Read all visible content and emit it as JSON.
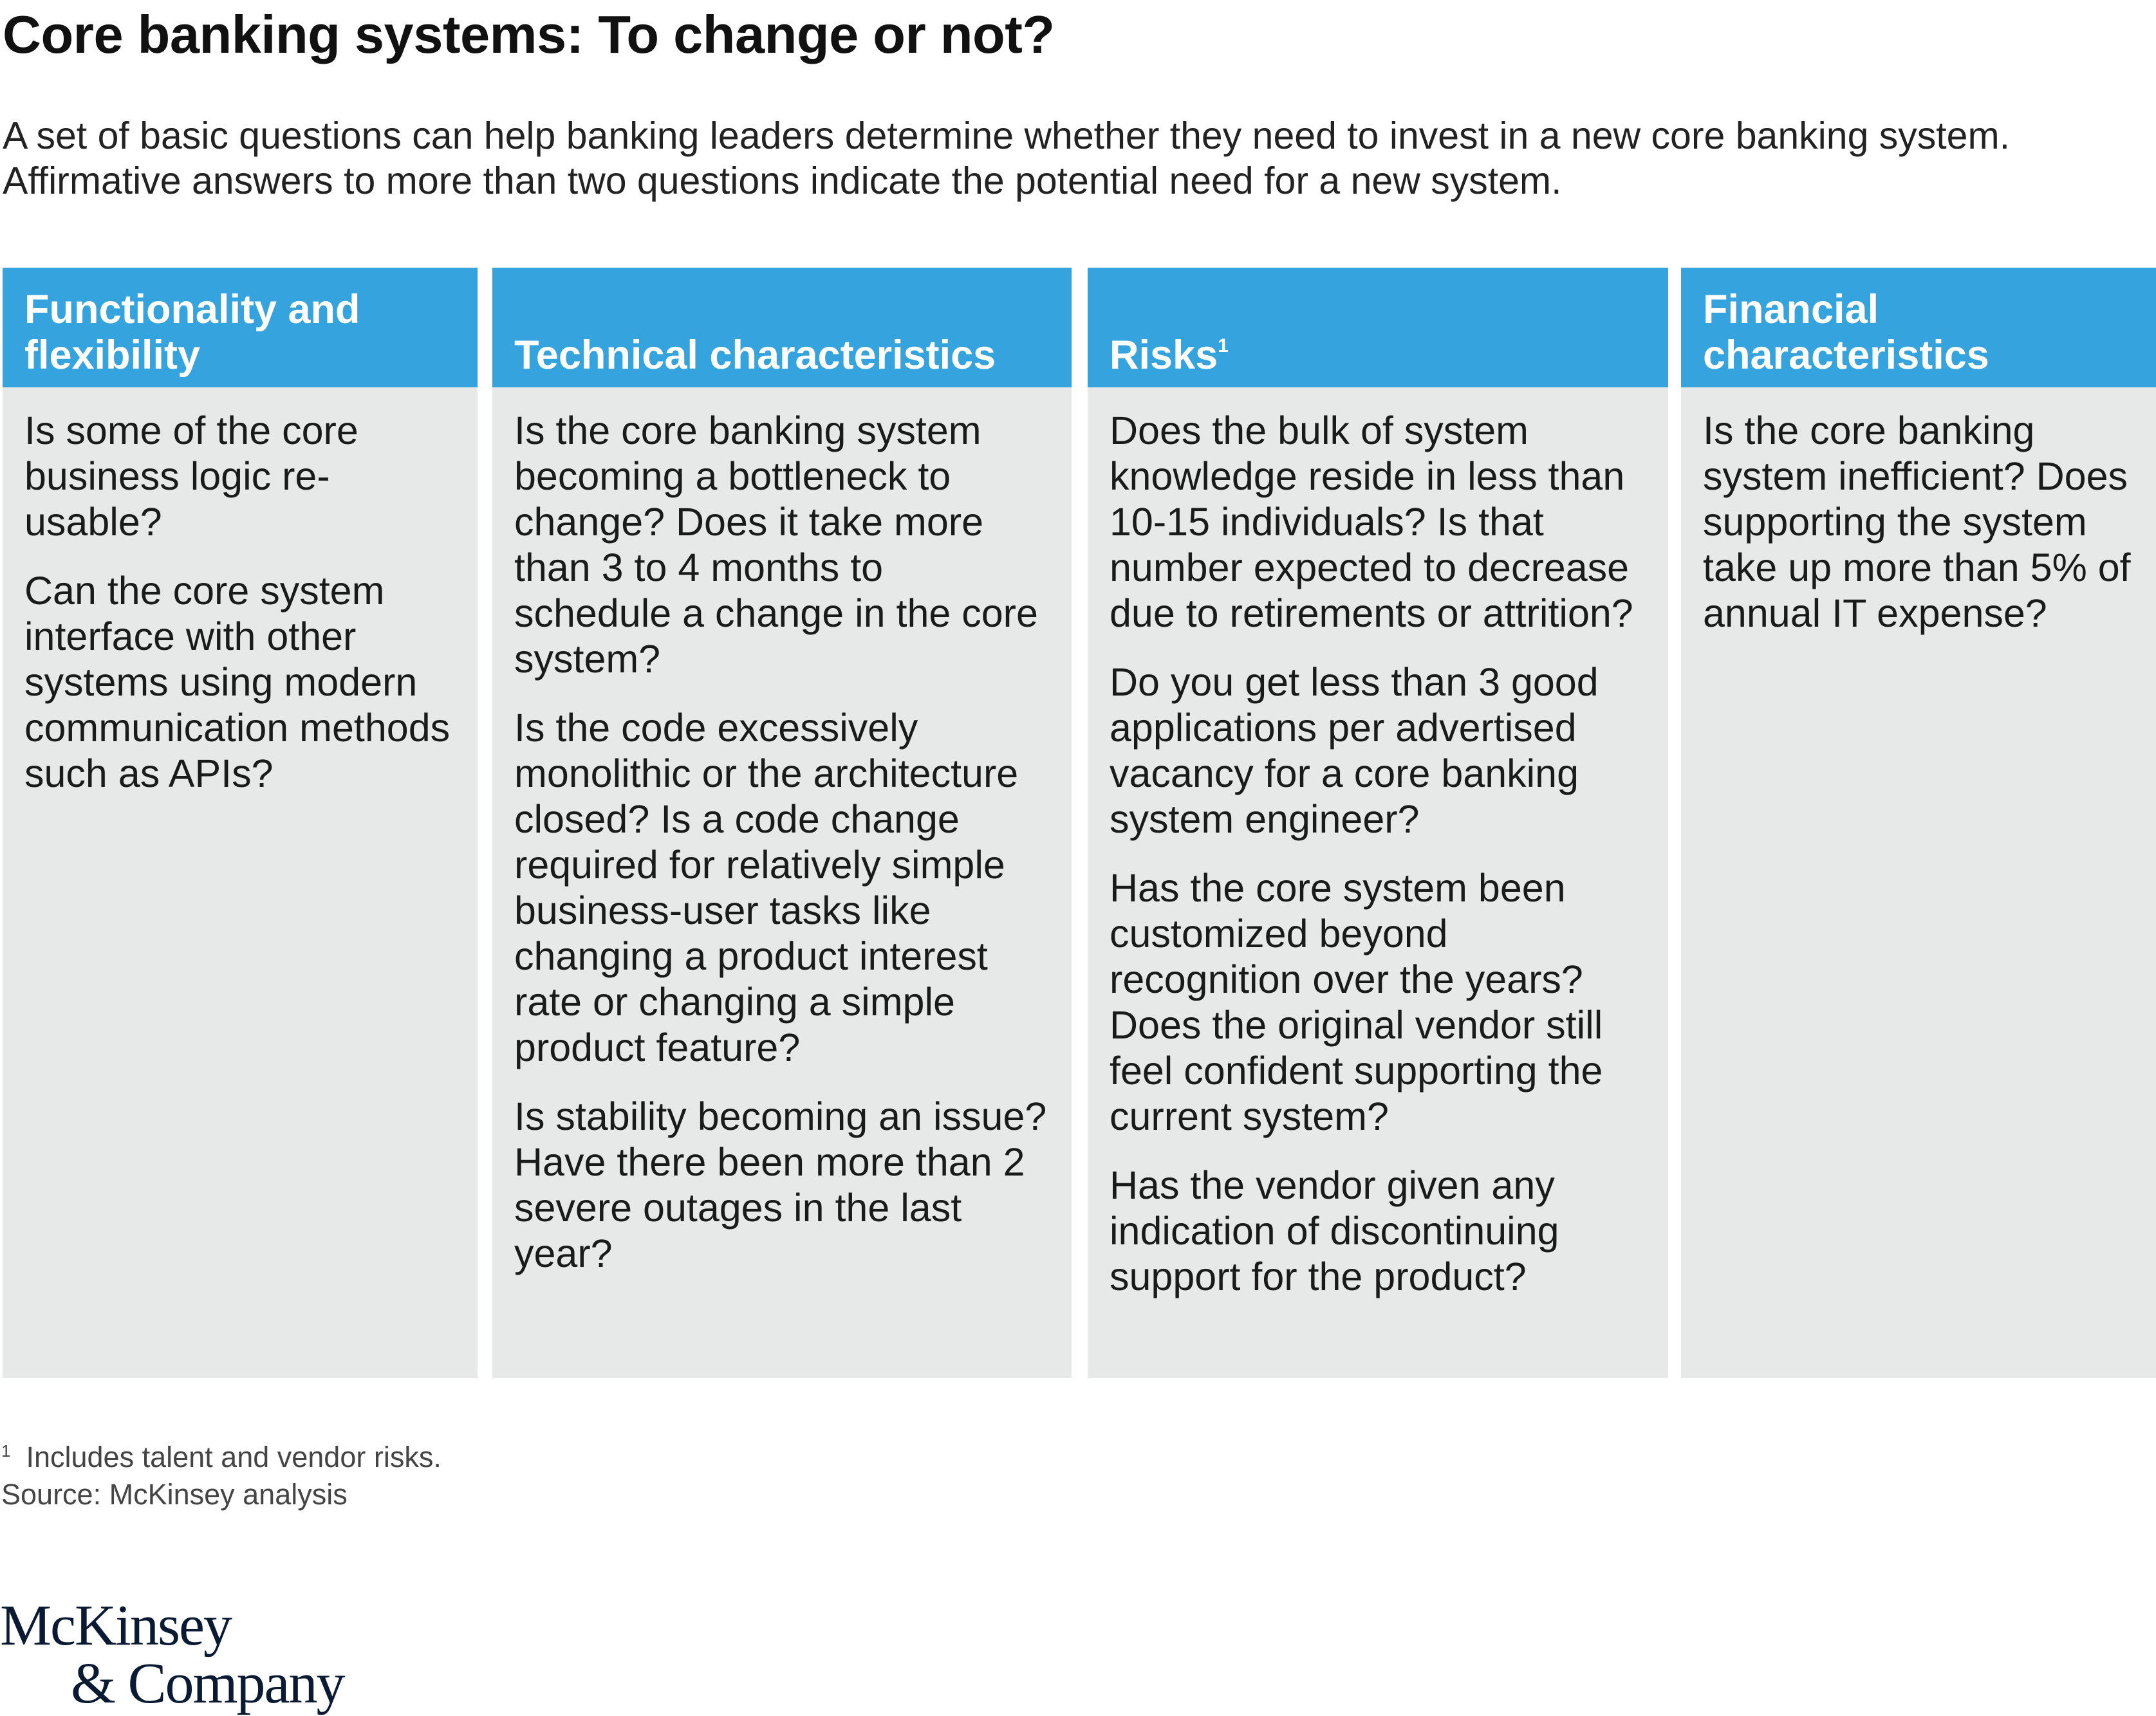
{
  "header": {
    "title": "Core banking systems: To change or not?",
    "subtitle_line1": "A set of basic questions can help banking leaders determine whether they need to invest in a new core banking system.",
    "subtitle_line2": "Affirmative answers to more than two questions indicate the potential need for a new system."
  },
  "columns": [
    {
      "title": "Functionality and flexibility",
      "questions": [
        "Is some of the core business logic re-usable?",
        "Can the core system interface with other systems using modern communication methods such as APIs?"
      ]
    },
    {
      "title": "Technical characteristics",
      "questions": [
        "Is the core banking system becoming a bottleneck to change? Does it take more than 3 to 4 months to schedule a change in the core system?",
        "Is the code excessively monolithic or the architecture closed? Is a code change required for relatively simple business-user tasks like changing a product interest rate or changing a simple product feature?",
        "Is stability becoming an issue? Have there been more than 2 severe outages in the last year?"
      ]
    },
    {
      "title": "Risks",
      "title_sup": "1",
      "questions": [
        "Does the bulk of system knowledge reside in less than 10-15 individuals? Is that number expected to decrease due to retirements or attrition?",
        "Do you get less than 3 good applications per advertised vacancy for a core banking system engineer?",
        "Has the core system been customized beyond recognition over the years? Does the original vendor still feel confident supporting the current system?",
        "Has the vendor given any indication of discontinuing support for the product?"
      ]
    },
    {
      "title": "Financial characteristics",
      "questions": [
        "Is the core banking system inefficient? Does supporting the system take up more than 5% of annual IT expense?"
      ]
    }
  ],
  "footnote": {
    "marker": "1",
    "text": "Includes talent and vendor risks.",
    "source": "Source: McKinsey analysis"
  },
  "logo": {
    "line1": "McKinsey",
    "line2": "& Company"
  },
  "colors": {
    "header_blue": "#35a3dd",
    "panel_gray": "#e7e8e8"
  }
}
